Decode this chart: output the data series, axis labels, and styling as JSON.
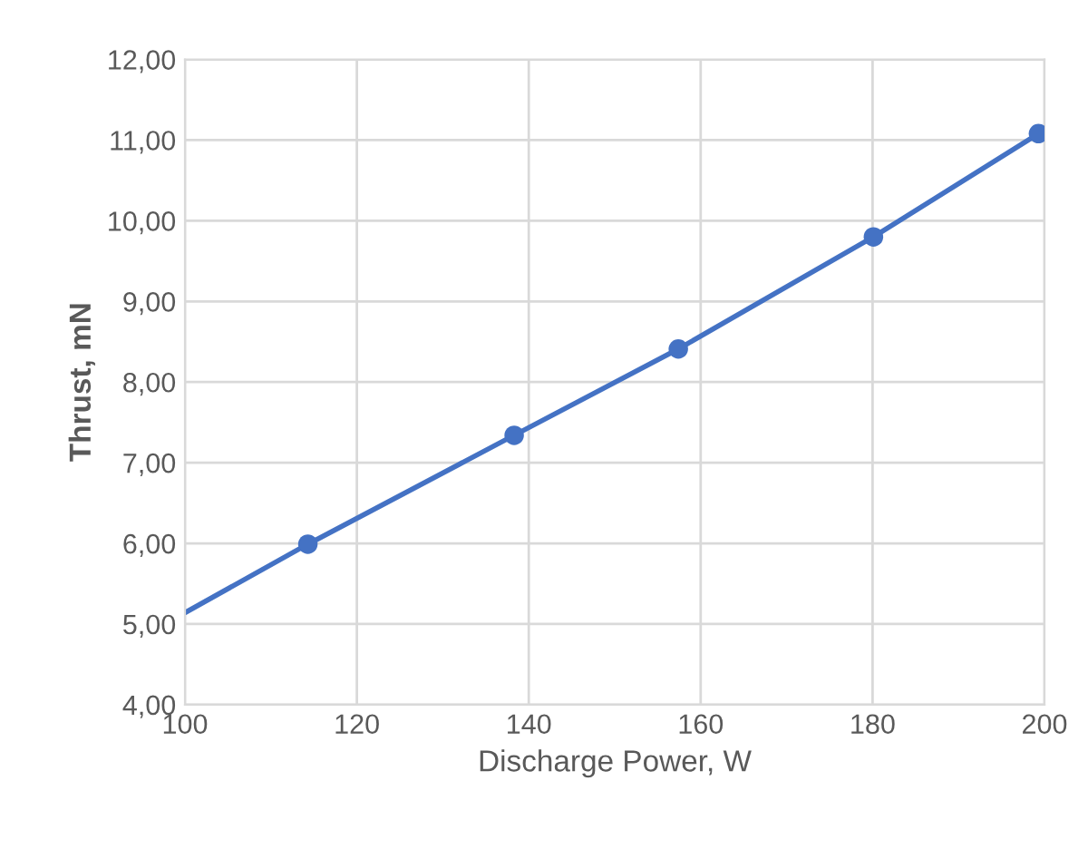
{
  "chart_data": {
    "type": "scatter",
    "xlabel": "Discharge Power, W",
    "ylabel": "Thrust, mN",
    "series": [
      {
        "color": "#4472c4",
        "x": [
          114.3,
          138.3,
          157.4,
          180.1,
          199.3
        ],
        "values": [
          5.99,
          7.34,
          8.41,
          9.8,
          11.08
        ],
        "marker": "circle"
      },
      {
        "type": "line",
        "color": "#4472c4",
        "x": [
          100,
          114.3,
          138.3,
          157.4,
          180.1,
          199.3
        ],
        "values": [
          5.14,
          5.99,
          7.34,
          8.41,
          9.8,
          11.08
        ],
        "line_style": "solid"
      }
    ],
    "xlim": [
      100,
      200
    ],
    "xticks": [
      100,
      120,
      140,
      160,
      180,
      200
    ],
    "ylim": [
      4,
      12
    ],
    "yticks": [
      {
        "value": 4,
        "label": "4,00"
      },
      {
        "value": 5,
        "label": "5,00"
      },
      {
        "value": 6,
        "label": "6,00"
      },
      {
        "value": 7,
        "label": "7,00"
      },
      {
        "value": 8,
        "label": "8,00"
      },
      {
        "value": 9,
        "label": "9,00"
      },
      {
        "value": 10,
        "label": "10,00"
      },
      {
        "value": 11,
        "label": "11,00"
      },
      {
        "value": 12,
        "label": "12,00"
      }
    ],
    "grid": true,
    "legend": false
  }
}
